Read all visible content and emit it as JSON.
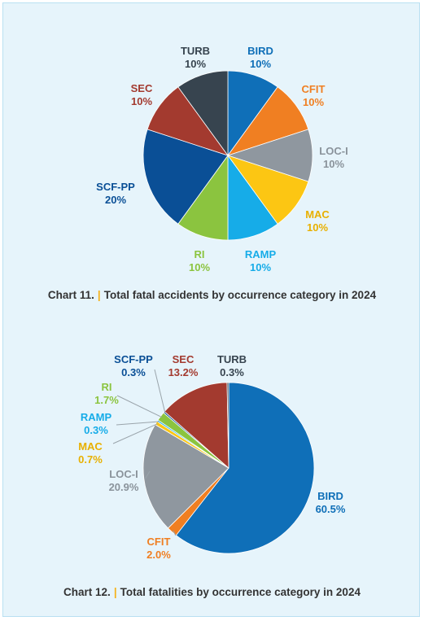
{
  "chart_data": [
    {
      "type": "pie",
      "caption_prefix": "Chart 11.",
      "caption_text": "Total fatal accidents by occurrence category in 2024",
      "slices": [
        {
          "label": "BIRD",
          "value": 10,
          "text": "10%",
          "color": "#0f6fb8"
        },
        {
          "label": "CFIT",
          "value": 10,
          "text": "10%",
          "color": "#f07f22"
        },
        {
          "label": "LOC-I",
          "value": 10,
          "text": "10%",
          "color": "#8f979f"
        },
        {
          "label": "MAC",
          "value": 10,
          "text": "10%",
          "color": "#fcc613"
        },
        {
          "label": "RAMP",
          "value": 10,
          "text": "10%",
          "color": "#16ace8"
        },
        {
          "label": "RI",
          "value": 10,
          "text": "10%",
          "color": "#8bc43f"
        },
        {
          "label": "SCF-PP",
          "value": 20,
          "text": "20%",
          "color": "#0a4f96"
        },
        {
          "label": "SEC",
          "value": 10,
          "text": "10%",
          "color": "#a33a2f"
        },
        {
          "label": "TURB",
          "value": 10,
          "text": "10%",
          "color": "#37444f"
        }
      ]
    },
    {
      "type": "pie",
      "caption_prefix": "Chart 12.",
      "caption_text": "Total fatalities by occurrence category in 2024",
      "slices": [
        {
          "label": "BIRD",
          "value": 60.5,
          "text": "60.5%",
          "color": "#0f6fb8"
        },
        {
          "label": "CFIT",
          "value": 2.0,
          "text": "2.0%",
          "color": "#f07f22"
        },
        {
          "label": "LOC-I",
          "value": 20.9,
          "text": "20.9%",
          "color": "#8f979f"
        },
        {
          "label": "MAC",
          "value": 0.7,
          "text": "0.7%",
          "color": "#fcc613"
        },
        {
          "label": "RAMP",
          "value": 0.3,
          "text": "0.3%",
          "color": "#16ace8"
        },
        {
          "label": "RI",
          "value": 1.7,
          "text": "1.7%",
          "color": "#8bc43f"
        },
        {
          "label": "SCF-PP",
          "value": 0.3,
          "text": "0.3%",
          "color": "#0a4f96"
        },
        {
          "label": "SEC",
          "value": 13.2,
          "text": "13.2%",
          "color": "#a33a2f"
        },
        {
          "label": "TURB",
          "value": 0.3,
          "text": "0.3%",
          "color": "#37444f"
        }
      ]
    }
  ]
}
